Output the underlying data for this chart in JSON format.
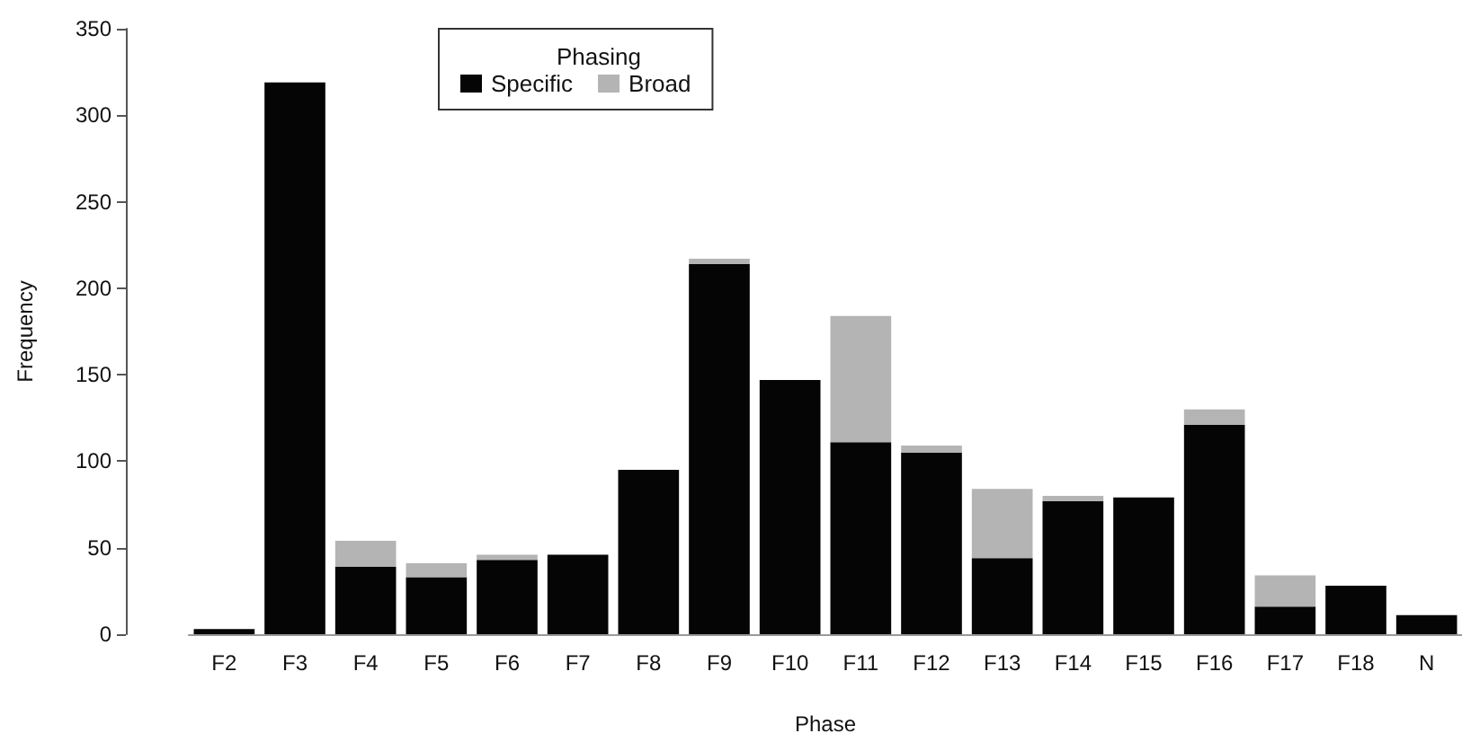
{
  "chart_data": {
    "type": "bar",
    "xlabel": "Phase",
    "ylabel": "Frequency",
    "legend_title": "Phasing",
    "categories": [
      "F2",
      "F3",
      "F4",
      "F5",
      "F6",
      "F7",
      "F8",
      "F9",
      "F10",
      "F11",
      "F12",
      "F13",
      "F14",
      "F15",
      "F16",
      "F17",
      "F18",
      "N"
    ],
    "stacked": true,
    "series": [
      {
        "name": "Specific",
        "color": "#050505",
        "values": [
          3,
          319,
          39,
          33,
          43,
          46,
          95,
          214,
          147,
          111,
          105,
          44,
          77,
          79,
          121,
          16,
          28,
          11
        ]
      },
      {
        "name": "Broad",
        "color": "#b3b4b3",
        "values": [
          0,
          0,
          15,
          8,
          3,
          0,
          0,
          3,
          0,
          73,
          4,
          40,
          3,
          0,
          9,
          18,
          0,
          0
        ]
      }
    ],
    "ylim": [
      0,
      350
    ],
    "yticks": [
      0,
      50,
      100,
      150,
      200,
      250,
      300,
      350
    ],
    "grid": false,
    "legend": "top"
  }
}
